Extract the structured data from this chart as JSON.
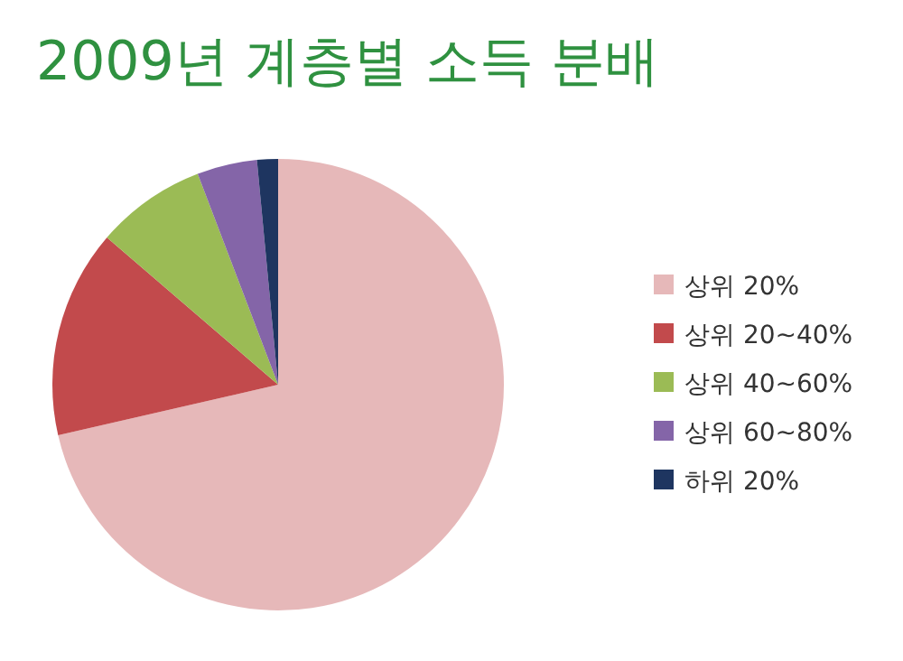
{
  "chart_data": {
    "type": "pie",
    "title": "2009년 계층별 소득 분배",
    "categories": [
      "상위 20%",
      "상위 20~40%",
      "상위 40~60%",
      "상위 60~80%",
      "하위 20%"
    ],
    "values": [
      71.4,
      14.9,
      7.9,
      4.3,
      1.5
    ],
    "colors": [
      "#e6b8b9",
      "#c24a4c",
      "#9bbb55",
      "#8465a8",
      "#1e3560"
    ],
    "legend": "right"
  }
}
